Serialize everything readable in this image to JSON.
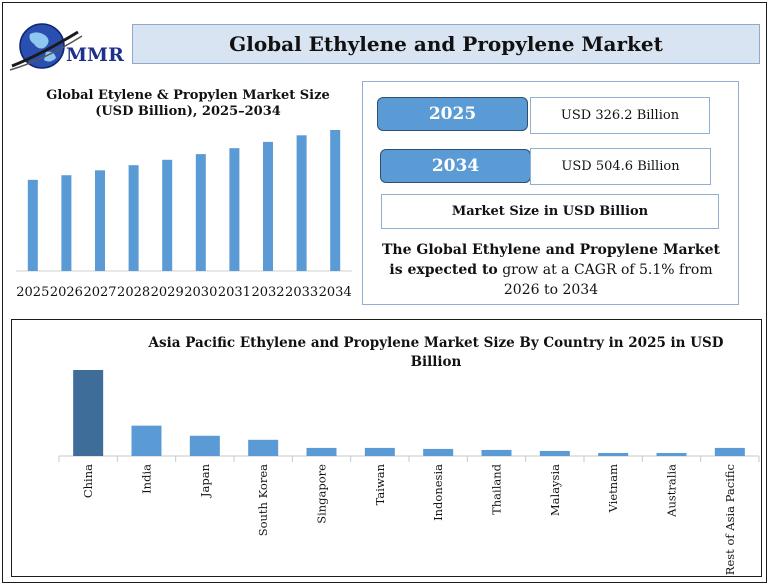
{
  "header": {
    "logo_text": "MMR",
    "title": "Global Ethylene and Propylene Market"
  },
  "info": {
    "rows": [
      {
        "year": "2025",
        "value": "USD 326.2 Billion"
      },
      {
        "year": "2034",
        "value": "USD 504.6 Billion"
      }
    ],
    "unit_label": "Market Size in USD Billion",
    "cagr_bold": "The Global Ethylene and Propylene Market is expected to",
    "cagr_rest": " grow at a CAGR of 5.1% from 2026 to 2034"
  },
  "chart_data": [
    {
      "type": "bar",
      "title": "Global Etylene & Propylen Market Size (USD Billion), 2025–2034",
      "categories": [
        "2025",
        "2026",
        "2027",
        "2028",
        "2029",
        "2030",
        "2031",
        "2032",
        "2033",
        "2034"
      ],
      "values": [
        326.2,
        342.8,
        360.3,
        378.7,
        398.0,
        418.3,
        439.6,
        462.0,
        485.6,
        504.6
      ],
      "color": "#5b9bd5",
      "grid": false,
      "legend": "none"
    },
    {
      "type": "bar",
      "title": "Asia Pacific Ethylene and Propylene Market Size By Country in 2025 in USD Billion",
      "categories": [
        "China",
        "India",
        "Japan",
        "South Korea",
        "Singapore",
        "Taiwan",
        "Indonesia",
        "Thailand",
        "Malaysia",
        "Vietnam",
        "Australia",
        "Rest of Asia Pacific"
      ],
      "values": [
        85,
        30,
        20,
        16,
        8,
        8,
        7,
        6,
        5,
        3,
        3,
        8
      ],
      "colors": [
        "#3f6d99",
        "#5b9bd5",
        "#5b9bd5",
        "#5b9bd5",
        "#5b9bd5",
        "#5b9bd5",
        "#5b9bd5",
        "#5b9bd5",
        "#5b9bd5",
        "#5b9bd5",
        "#5b9bd5",
        "#5b9bd5"
      ],
      "grid": false,
      "legend": "none"
    }
  ]
}
